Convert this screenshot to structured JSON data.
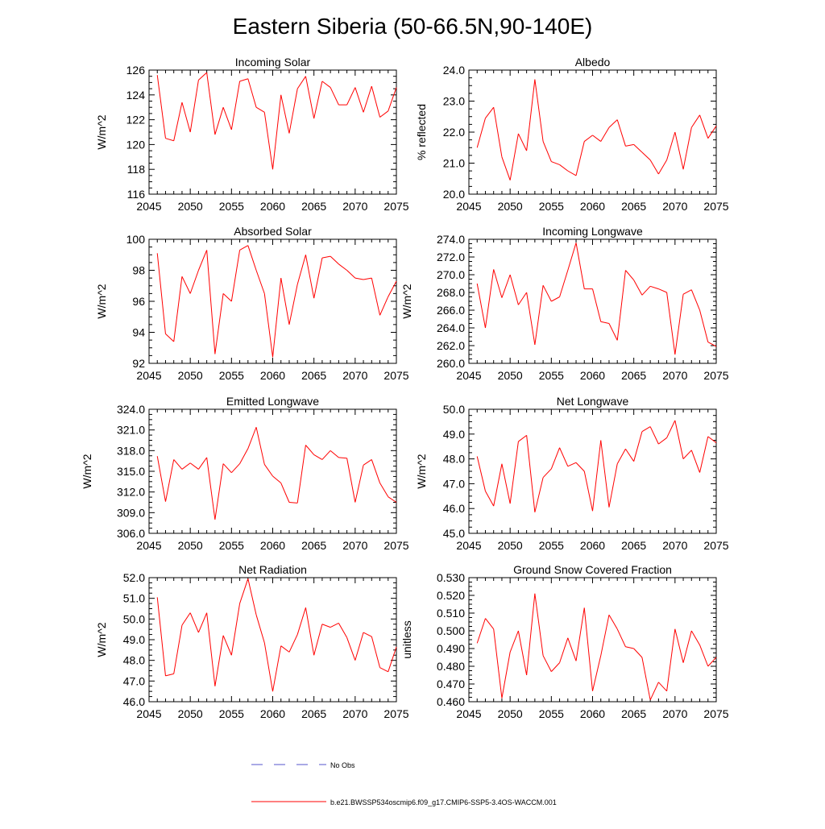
{
  "figure": {
    "title": "Eastern Siberia (50-66.5N,90-140E)",
    "line_color": "#ff0000",
    "obs_color": "#5555cc",
    "legend": [
      {
        "label": "No Obs",
        "style": "dashed",
        "color": "#5555cc"
      },
      {
        "label": "b.e21.BWSSP534oscmip6.f09_g17.CMIP6-SSP5-3.4OS-WACCM.001",
        "style": "solid",
        "color": "#ff0000"
      }
    ]
  },
  "chart_data": [
    {
      "type": "line",
      "title": "Incoming Solar",
      "ylabel": "W/m^2",
      "xlim": [
        2045,
        2075
      ],
      "ylim": [
        116,
        126
      ],
      "yticks": [
        116,
        118,
        120,
        122,
        124,
        126
      ],
      "ytick_labels": [
        "116",
        "118",
        "120",
        "122",
        "124",
        "126"
      ],
      "xticks": [
        2045,
        2050,
        2055,
        2060,
        2065,
        2070,
        2075
      ],
      "xtick_labels": [
        "2045",
        "2050",
        "2055",
        "2060",
        "2065",
        "2070",
        "2075"
      ],
      "x": [
        2046,
        2047,
        2048,
        2049,
        2050,
        2051,
        2052,
        2053,
        2054,
        2055,
        2056,
        2057,
        2058,
        2059,
        2060,
        2061,
        2062,
        2063,
        2064,
        2065,
        2066,
        2067,
        2068,
        2069,
        2070,
        2071,
        2072,
        2073,
        2074,
        2075
      ],
      "values": [
        125.6,
        120.5,
        120.3,
        123.4,
        121.0,
        125.2,
        125.8,
        120.8,
        123.0,
        121.2,
        125.1,
        125.3,
        123.0,
        122.6,
        118.0,
        124.0,
        120.9,
        124.5,
        125.5,
        122.1,
        125.1,
        124.6,
        123.2,
        123.2,
        124.6,
        122.6,
        124.7,
        122.2,
        122.7,
        124.6
      ]
    },
    {
      "type": "line",
      "title": "Albedo",
      "ylabel": "% reflected",
      "xlim": [
        2045,
        2075
      ],
      "ylim": [
        20.0,
        24.0
      ],
      "yticks": [
        20,
        21,
        22,
        23,
        24
      ],
      "ytick_labels": [
        "20.0",
        "21.0",
        "22.0",
        "23.0",
        "24.0"
      ],
      "xticks": [
        2045,
        2050,
        2055,
        2060,
        2065,
        2070,
        2075
      ],
      "xtick_labels": [
        "2045",
        "2050",
        "2055",
        "2060",
        "2065",
        "2070",
        "2075"
      ],
      "x": [
        2046,
        2047,
        2048,
        2049,
        2050,
        2051,
        2052,
        2053,
        2054,
        2055,
        2056,
        2057,
        2058,
        2059,
        2060,
        2061,
        2062,
        2063,
        2064,
        2065,
        2066,
        2067,
        2068,
        2069,
        2070,
        2071,
        2072,
        2073,
        2074,
        2075
      ],
      "values": [
        21.5,
        22.45,
        22.8,
        21.2,
        20.45,
        21.95,
        21.4,
        23.7,
        21.7,
        21.05,
        20.95,
        20.75,
        20.6,
        21.7,
        21.9,
        21.7,
        22.15,
        22.4,
        21.55,
        21.6,
        21.35,
        21.1,
        20.65,
        21.1,
        22.0,
        20.8,
        22.15,
        22.55,
        21.8,
        22.2
      ]
    },
    {
      "type": "line",
      "title": "Absorbed Solar",
      "ylabel": "W/m^2",
      "xlim": [
        2045,
        2075
      ],
      "ylim": [
        92,
        100
      ],
      "yticks": [
        92,
        94,
        96,
        98,
        100
      ],
      "ytick_labels": [
        "92",
        "94",
        "96",
        "98",
        "100"
      ],
      "xticks": [
        2045,
        2050,
        2055,
        2060,
        2065,
        2070,
        2075
      ],
      "xtick_labels": [
        "2045",
        "2050",
        "2055",
        "2060",
        "2065",
        "2070",
        "2075"
      ],
      "x": [
        2046,
        2047,
        2048,
        2049,
        2050,
        2051,
        2052,
        2053,
        2054,
        2055,
        2056,
        2057,
        2058,
        2059,
        2060,
        2061,
        2062,
        2063,
        2064,
        2065,
        2066,
        2067,
        2068,
        2069,
        2070,
        2071,
        2072,
        2073,
        2074,
        2075
      ],
      "values": [
        99.1,
        93.9,
        93.4,
        97.6,
        96.5,
        98.0,
        99.3,
        92.6,
        96.5,
        96.0,
        99.3,
        99.6,
        98.0,
        96.5,
        92.4,
        97.5,
        94.5,
        97.1,
        99.0,
        96.2,
        98.8,
        98.9,
        98.4,
        98.0,
        97.5,
        97.4,
        97.5,
        95.1,
        96.3,
        97.3
      ]
    },
    {
      "type": "line",
      "title": "Incoming Longwave",
      "ylabel": "W/m^2",
      "xlim": [
        2045,
        2075
      ],
      "ylim": [
        260.0,
        274.0
      ],
      "yticks": [
        260,
        262,
        264,
        266,
        268,
        270,
        272,
        274
      ],
      "ytick_labels": [
        "260.0",
        "262.0",
        "264.0",
        "266.0",
        "268.0",
        "270.0",
        "272.0",
        "274.0"
      ],
      "xticks": [
        2045,
        2050,
        2055,
        2060,
        2065,
        2070,
        2075
      ],
      "xtick_labels": [
        "2045",
        "2050",
        "2055",
        "2060",
        "2065",
        "2070",
        "2075"
      ],
      "x": [
        2046,
        2047,
        2048,
        2049,
        2050,
        2051,
        2052,
        2053,
        2054,
        2055,
        2056,
        2057,
        2058,
        2059,
        2060,
        2061,
        2062,
        2063,
        2064,
        2065,
        2066,
        2067,
        2068,
        2069,
        2070,
        2071,
        2072,
        2073,
        2074,
        2075
      ],
      "values": [
        269.0,
        264.0,
        270.6,
        267.4,
        270.0,
        266.6,
        268.0,
        262.1,
        268.8,
        267.0,
        267.5,
        270.5,
        273.6,
        268.4,
        268.4,
        264.7,
        264.5,
        262.6,
        270.5,
        269.4,
        267.7,
        268.7,
        268.4,
        268.0,
        261.0,
        267.8,
        268.3,
        266.0,
        262.4,
        261.9
      ]
    },
    {
      "type": "line",
      "title": "Emitted Longwave",
      "ylabel": "W/m^2",
      "xlim": [
        2045,
        2075
      ],
      "ylim": [
        306.0,
        324.0
      ],
      "yticks": [
        306,
        309,
        312,
        315,
        318,
        321,
        324
      ],
      "ytick_labels": [
        "306.0",
        "309.0",
        "312.0",
        "315.0",
        "318.0",
        "321.0",
        "324.0"
      ],
      "xticks": [
        2045,
        2050,
        2055,
        2060,
        2065,
        2070,
        2075
      ],
      "xtick_labels": [
        "2045",
        "2050",
        "2055",
        "2060",
        "2065",
        "2070",
        "2075"
      ],
      "x": [
        2046,
        2047,
        2048,
        2049,
        2050,
        2051,
        2052,
        2053,
        2054,
        2055,
        2056,
        2057,
        2058,
        2059,
        2060,
        2061,
        2062,
        2063,
        2064,
        2065,
        2066,
        2067,
        2068,
        2069,
        2070,
        2071,
        2072,
        2073,
        2074,
        2075
      ],
      "values": [
        317.2,
        310.6,
        316.7,
        315.3,
        316.2,
        315.3,
        317.0,
        308.0,
        316.1,
        314.8,
        316.1,
        318.3,
        321.4,
        316.0,
        314.3,
        313.3,
        310.5,
        310.4,
        318.8,
        317.4,
        316.7,
        318.0,
        317.0,
        316.9,
        310.5,
        315.9,
        316.7,
        313.3,
        311.3,
        310.5
      ]
    },
    {
      "type": "line",
      "title": "Net Longwave",
      "ylabel": "W/m^2",
      "xlim": [
        2045,
        2075
      ],
      "ylim": [
        45.0,
        50.0
      ],
      "yticks": [
        45,
        46,
        47,
        48,
        49,
        50
      ],
      "ytick_labels": [
        "45.0",
        "46.0",
        "47.0",
        "48.0",
        "49.0",
        "50.0"
      ],
      "xticks": [
        2045,
        2050,
        2055,
        2060,
        2065,
        2070,
        2075
      ],
      "xtick_labels": [
        "2045",
        "2050",
        "2055",
        "2060",
        "2065",
        "2070",
        "2075"
      ],
      "x": [
        2046,
        2047,
        2048,
        2049,
        2050,
        2051,
        2052,
        2053,
        2054,
        2055,
        2056,
        2057,
        2058,
        2059,
        2060,
        2061,
        2062,
        2063,
        2064,
        2065,
        2066,
        2067,
        2068,
        2069,
        2070,
        2071,
        2072,
        2073,
        2074,
        2075
      ],
      "values": [
        48.1,
        46.7,
        46.1,
        47.8,
        46.2,
        48.7,
        48.95,
        45.85,
        47.25,
        47.6,
        48.45,
        47.7,
        47.85,
        47.5,
        45.9,
        48.75,
        46.05,
        47.8,
        48.4,
        47.9,
        49.1,
        49.3,
        48.6,
        48.85,
        49.55,
        48.0,
        48.35,
        47.45,
        48.9,
        48.65
      ]
    },
    {
      "type": "line",
      "title": "Net Radiation",
      "ylabel": "W/m^2",
      "xlim": [
        2045,
        2075
      ],
      "ylim": [
        46.0,
        52.0
      ],
      "yticks": [
        46,
        47,
        48,
        49,
        50,
        51,
        52
      ],
      "ytick_labels": [
        "46.0",
        "47.0",
        "48.0",
        "49.0",
        "50.0",
        "51.0",
        "52.0"
      ],
      "xticks": [
        2045,
        2050,
        2055,
        2060,
        2065,
        2070,
        2075
      ],
      "xtick_labels": [
        "2045",
        "2050",
        "2055",
        "2060",
        "2065",
        "2070",
        "2075"
      ],
      "x": [
        2046,
        2047,
        2048,
        2049,
        2050,
        2051,
        2052,
        2053,
        2054,
        2055,
        2056,
        2057,
        2058,
        2059,
        2060,
        2061,
        2062,
        2063,
        2064,
        2065,
        2066,
        2067,
        2068,
        2069,
        2070,
        2071,
        2072,
        2073,
        2074,
        2075
      ],
      "values": [
        51.05,
        47.25,
        47.35,
        49.7,
        50.3,
        49.35,
        50.3,
        46.75,
        49.2,
        48.25,
        50.75,
        51.95,
        50.2,
        48.85,
        46.5,
        48.7,
        48.4,
        49.25,
        50.55,
        48.25,
        49.75,
        49.6,
        49.8,
        49.1,
        48.0,
        49.35,
        49.15,
        47.65,
        47.45,
        48.65
      ]
    },
    {
      "type": "line",
      "title": "Ground Snow Covered Fraction",
      "ylabel": "unitless",
      "xlim": [
        2045,
        2075
      ],
      "ylim": [
        0.46,
        0.53
      ],
      "yticks": [
        0.46,
        0.47,
        0.48,
        0.49,
        0.5,
        0.51,
        0.52,
        0.53
      ],
      "ytick_labels": [
        "0.460",
        "0.470",
        "0.480",
        "0.490",
        "0.500",
        "0.510",
        "0.520",
        "0.530"
      ],
      "xticks": [
        2045,
        2050,
        2055,
        2060,
        2065,
        2070,
        2075
      ],
      "xtick_labels": [
        "2045",
        "2050",
        "2055",
        "2060",
        "2065",
        "2070",
        "2075"
      ],
      "x": [
        2046,
        2047,
        2048,
        2049,
        2050,
        2051,
        2052,
        2053,
        2054,
        2055,
        2056,
        2057,
        2058,
        2059,
        2060,
        2061,
        2062,
        2063,
        2064,
        2065,
        2066,
        2067,
        2068,
        2069,
        2070,
        2071,
        2072,
        2073,
        2074,
        2075
      ],
      "values": [
        0.493,
        0.507,
        0.501,
        0.462,
        0.488,
        0.5,
        0.475,
        0.521,
        0.486,
        0.477,
        0.482,
        0.496,
        0.483,
        0.513,
        0.466,
        0.486,
        0.509,
        0.501,
        0.491,
        0.49,
        0.485,
        0.461,
        0.471,
        0.466,
        0.501,
        0.482,
        0.5,
        0.492,
        0.48,
        0.485
      ]
    }
  ]
}
